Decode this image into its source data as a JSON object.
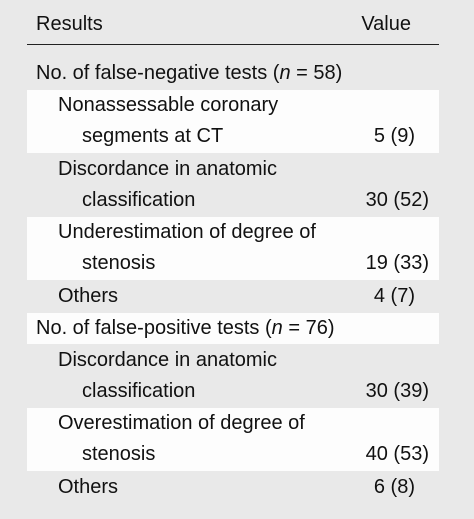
{
  "header": {
    "results_label": "Results",
    "value_label": "Value"
  },
  "sections": [
    {
      "title_prefix": "No. of false-negative tests (",
      "n_symbol": "n",
      "title_suffix": " = 58)",
      "rows": [
        {
          "line1": "Nonassessable coronary",
          "line2": "segments at CT",
          "value": "5 (9)"
        },
        {
          "line1": "Discordance in anatomic",
          "line2": "classification",
          "value": "30 (52)"
        },
        {
          "line1": "Underestimation of degree of",
          "line2": "stenosis",
          "value": "19 (33)"
        },
        {
          "line1": "Others",
          "value": "4 (7)"
        }
      ]
    },
    {
      "title_prefix": "No. of false-positive tests (",
      "n_symbol": "n",
      "title_suffix": " = 76)",
      "rows": [
        {
          "line1": "Discordance in anatomic",
          "line2": "classification",
          "value": "30 (39)"
        },
        {
          "line1": "Overestimation of degree of",
          "line2": "stenosis",
          "value": "40 (53)"
        },
        {
          "line1": "Others",
          "value": "6 (8)"
        }
      ]
    }
  ]
}
